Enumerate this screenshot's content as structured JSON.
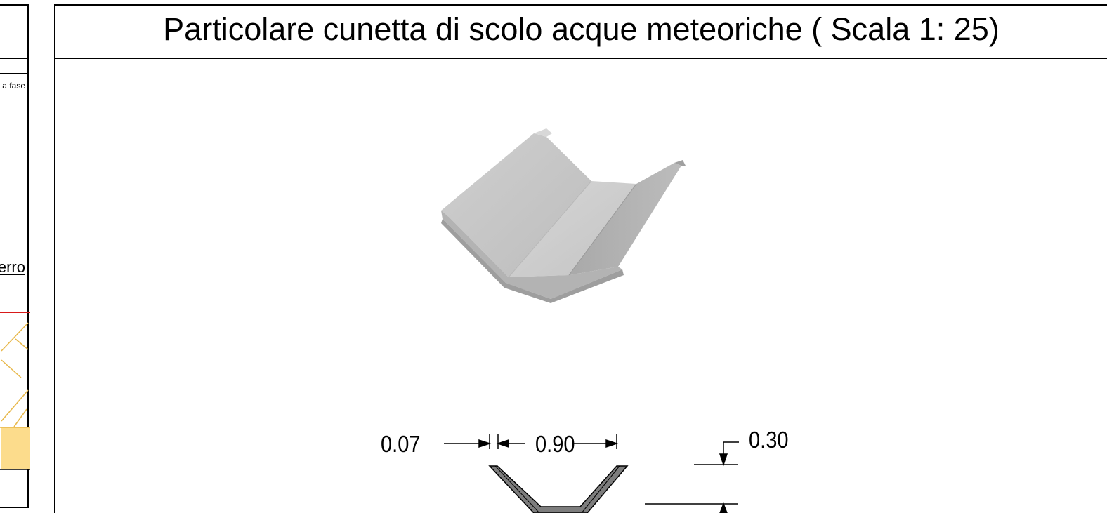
{
  "sidebar": {
    "fase_text": "a fase",
    "erro_text": "erro"
  },
  "drawing": {
    "title": "Particolare cunetta di scolo acque meteoriche ( Scala 1: 25)",
    "dimensions": {
      "left_wall": "0.07",
      "bottom_width": "0.90",
      "height": "0.30"
    }
  },
  "colors": {
    "line": "#000000",
    "hatch": "#e8b84a",
    "fill_yellow": "#fcdc8c",
    "red_line": "#d81a1a",
    "concrete": "#c8c8c8",
    "section_fill": "#7d7d7d"
  }
}
